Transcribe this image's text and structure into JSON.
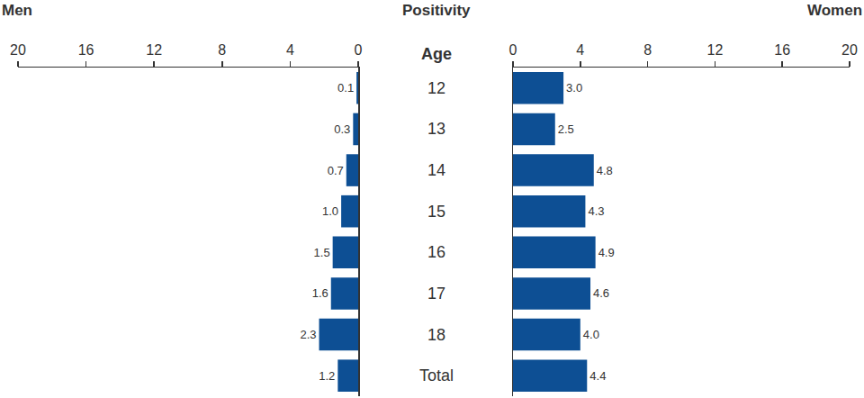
{
  "title": "Positivity",
  "category_label": "Age",
  "chart_data": [
    {
      "type": "bar",
      "title": "Men",
      "orientation": "horizontal",
      "categories": [
        "12",
        "13",
        "14",
        "15",
        "16",
        "17",
        "18",
        "Total"
      ],
      "values": [
        0.1,
        0.3,
        0.7,
        1.0,
        1.5,
        1.6,
        2.3,
        1.2
      ],
      "value_labels": [
        "0.1",
        "0.3",
        "0.7",
        "1.0",
        "1.5",
        "1.6",
        "2.3",
        "1.2"
      ],
      "color": "#0d4f94",
      "xlim": [
        20,
        0
      ],
      "xticks": [
        20,
        16,
        12,
        8,
        4,
        0
      ],
      "grid": false,
      "data_labels": true
    },
    {
      "type": "bar",
      "title": "Women",
      "orientation": "horizontal",
      "categories": [
        "12",
        "13",
        "14",
        "15",
        "16",
        "17",
        "18",
        "Total"
      ],
      "values": [
        3.0,
        2.5,
        4.8,
        4.3,
        4.9,
        4.6,
        4.0,
        4.4
      ],
      "value_labels": [
        "3.0",
        "2.5",
        "4.8",
        "4.3",
        "4.9",
        "4.6",
        "4.0",
        "4.4"
      ],
      "color": "#0d4f94",
      "xlim": [
        0,
        20
      ],
      "xticks": [
        0,
        4,
        8,
        12,
        16,
        20
      ],
      "grid": false,
      "data_labels": true
    }
  ]
}
